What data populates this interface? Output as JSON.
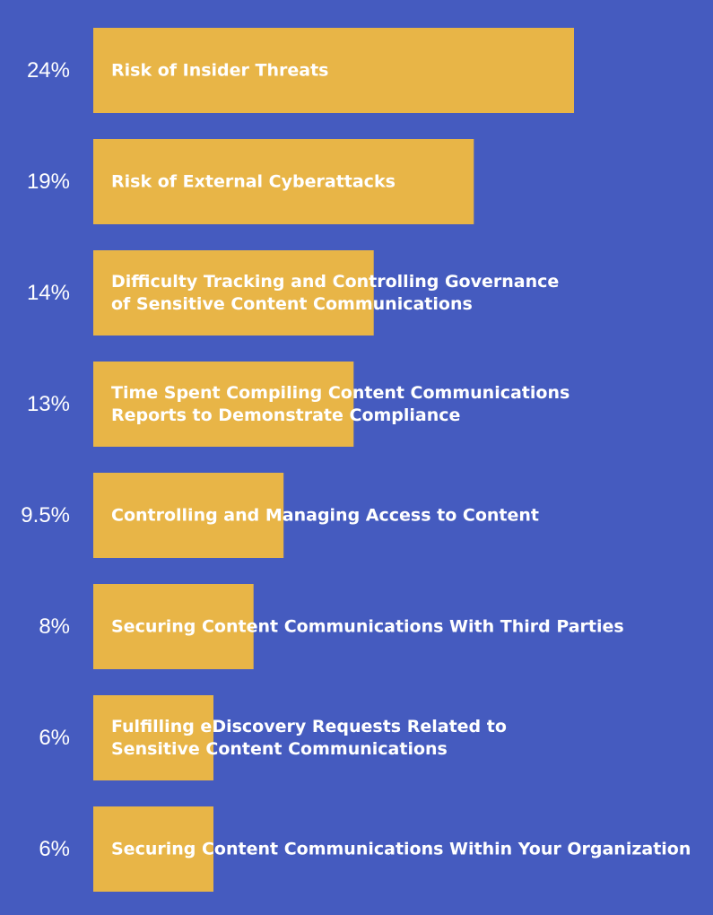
{
  "colors": {
    "background": "#455bbf",
    "bar": "#e8b547",
    "text": "#ffffff"
  },
  "chart_data": {
    "type": "bar",
    "orientation": "horizontal",
    "grid": false,
    "xlim": [
      0,
      24
    ],
    "series": [
      {
        "values": [
          24,
          19,
          14,
          13,
          9.5,
          8,
          6,
          6
        ],
        "value_labels": [
          "24%",
          "19%",
          "14%",
          "13%",
          "9.5%",
          "8%",
          "6%",
          "6%"
        ]
      }
    ],
    "categories": [
      [
        "Risk of Insider Threats"
      ],
      [
        "Risk of External Cyberattacks"
      ],
      [
        "Difficulty Tracking and Controlling Governance",
        "of Sensitive Content Communications"
      ],
      [
        "Time Spent Compiling Content Communications",
        "Reports to Demonstrate Compliance"
      ],
      [
        "Controlling and Managing Access to Content"
      ],
      [
        "Securing Content Communications With Third Parties"
      ],
      [
        "Fulfilling eDiscovery Requests Related to",
        "Sensitive Content Communications"
      ],
      [
        "Securing Content Communications Within Your Organization"
      ]
    ]
  }
}
